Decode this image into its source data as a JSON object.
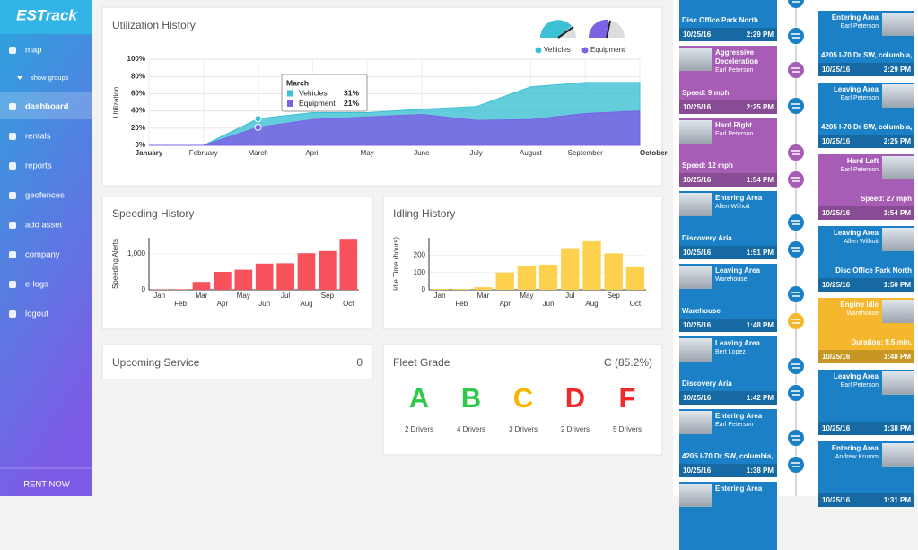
{
  "sidebar": {
    "logo": "ESTrack",
    "nav": [
      "map",
      "show groups",
      "dashboard",
      "rentals",
      "reports",
      "geofences",
      "add asset",
      "company",
      "e-logs",
      "logout"
    ],
    "rent_now": "RENT NOW"
  },
  "chart_data": [
    {
      "type": "area",
      "title": "Utilization History",
      "y_label": "Utilization",
      "categories": [
        "January",
        "February",
        "March",
        "April",
        "May",
        "June",
        "July",
        "August",
        "September",
        "October"
      ],
      "series": [
        {
          "name": "Vehicles",
          "color": "#3cc0d3",
          "values": [
            0,
            0,
            31,
            38,
            38,
            42,
            45,
            68,
            73,
            73
          ]
        },
        {
          "name": "Equipment",
          "color": "#7b63e3",
          "values": [
            0,
            0,
            21,
            30,
            33,
            36,
            29,
            30,
            37,
            40
          ]
        }
      ],
      "ylim": [
        0,
        100
      ],
      "yticks": [
        {
          "value": 0,
          "label": "0%"
        },
        {
          "value": 20,
          "label": "20%"
        },
        {
          "value": 40,
          "label": "40%"
        },
        {
          "value": 60,
          "label": "60%"
        },
        {
          "value": 80,
          "label": "80%"
        },
        {
          "value": 100,
          "label": "100%"
        }
      ],
      "tooltip": {
        "title": "March",
        "items": [
          {
            "name": "Vehicles",
            "label": "31%"
          },
          {
            "name": "Equipment",
            "label": "21%"
          }
        ]
      }
    },
    {
      "type": "bar",
      "title": "Speeding History",
      "y_label": "Speeding Alerts",
      "categories": [
        "Jan",
        "Feb",
        "Mar",
        "Apr",
        "May",
        "Jun",
        "Jul",
        "Aug",
        "Sep",
        "Oct"
      ],
      "values": [
        10,
        15,
        220,
        500,
        560,
        730,
        740,
        1020,
        1080,
        1420
      ],
      "color": "#f7525c",
      "ylim": [
        0,
        1450
      ],
      "yticks": [
        0,
        {
          "value": 1000,
          "label": "1,000"
        }
      ]
    },
    {
      "type": "bar",
      "title": "Idling History",
      "y_label": "Idle Time (hours)",
      "categories": [
        "Jan",
        "Feb",
        "Mar",
        "Apr",
        "May",
        "Jun",
        "Jul",
        "Aug",
        "Sep",
        "Oct"
      ],
      "values": [
        5,
        5,
        15,
        100,
        140,
        145,
        240,
        280,
        210,
        130
      ],
      "color": "#fdd04e",
      "ylim": [
        0,
        300
      ],
      "yticks": [
        0,
        100,
        200
      ]
    }
  ],
  "upcoming_service": {
    "title": "Upcoming Service",
    "count": 0
  },
  "fleet_grade": {
    "title": "Fleet Grade",
    "overall": "C (85.2%)",
    "grades": [
      {
        "letter": "A",
        "drivers": "2 Drivers",
        "color": "#2ec948"
      },
      {
        "letter": "B",
        "drivers": "4 Drivers",
        "color": "#2ec948"
      },
      {
        "letter": "C",
        "drivers": "3 Drivers",
        "color": "#f7b500"
      },
      {
        "letter": "D",
        "drivers": "2 Drivers",
        "color": "#ee2b2b"
      },
      {
        "letter": "F",
        "drivers": "5 Drivers",
        "color": "#ee2b2b"
      }
    ]
  },
  "timeline": {
    "left": [
      {
        "detail": "Disc Office Park North",
        "date": "10/25/16",
        "time": "2:29 PM",
        "color": "#1b80c6"
      },
      {
        "title": "Aggressive Deceleration",
        "subtitle": "Earl Peterson",
        "detail": "Speed: 9 mph",
        "date": "10/25/16",
        "time": "2:25 PM",
        "color": "#a75db5"
      },
      {
        "title": "Hard Right",
        "subtitle": "Earl Peterson",
        "detail": "Speed: 12 mph",
        "date": "10/25/16",
        "time": "1:54 PM",
        "color": "#a75db5"
      },
      {
        "title": "Entering Area",
        "subtitle": "Allen Wilhoit",
        "detail": "Discovery Aria",
        "date": "10/25/16",
        "time": "1:51 PM",
        "color": "#1b80c6"
      },
      {
        "title": "Leaving Area",
        "subtitle": "Warehouse",
        "detail": "Warehouse",
        "date": "10/25/16",
        "time": "1:48 PM",
        "color": "#1b80c6"
      },
      {
        "title": "Leaving Area",
        "subtitle": "Bert Lopez",
        "detail": "Discovery Aria",
        "date": "10/25/16",
        "time": "1:42 PM",
        "color": "#1b80c6"
      },
      {
        "title": "Entering Area",
        "subtitle": "Earl Peterson",
        "detail": "4205 I-70 Dr SW, columbia, M",
        "date": "10/25/16",
        "time": "1:38 PM",
        "color": "#1b80c6"
      },
      {
        "title": "Entering Area",
        "color": "#1b80c6"
      }
    ],
    "right": [
      {
        "title": "Entering Area",
        "subtitle": "Earl Peterson",
        "detail": "4205 I-70 Dr SW, columbia, M",
        "date": "10/25/16",
        "time": "2:29 PM",
        "color": "#1b80c6"
      },
      {
        "title": "Leaving Area",
        "subtitle": "Earl Peterson",
        "detail": "4205 I-70 Dr SW, columbia, M",
        "date": "10/25/16",
        "time": "2:25 PM",
        "color": "#1b80c6"
      },
      {
        "title": "Hard Left",
        "subtitle": "Earl Peterson",
        "detail": "Speed: 27 mph",
        "date": "10/25/16",
        "time": "1:54 PM",
        "color": "#a75db5"
      },
      {
        "title": "Leaving Area",
        "subtitle": "Allen Wilhoit",
        "detail": "Disc Office Park North",
        "date": "10/25/16",
        "time": "1:50 PM",
        "color": "#1b80c6"
      },
      {
        "title": "Engine Idle",
        "subtitle": "Warehouse",
        "detail": "Duration: 9.5 min.",
        "date": "10/25/16",
        "time": "1:48 PM",
        "color": "#f5b72e"
      },
      {
        "title": "Leaving Area",
        "subtitle": "Earl Peterson",
        "date": "10/25/16",
        "time": "1:38 PM",
        "color": "#1b80c6"
      },
      {
        "title": "Entering Area",
        "subtitle": "Andrew Krumm",
        "date": "10/25/16",
        "time": "1:31 PM",
        "color": "#1b80c6"
      }
    ]
  }
}
